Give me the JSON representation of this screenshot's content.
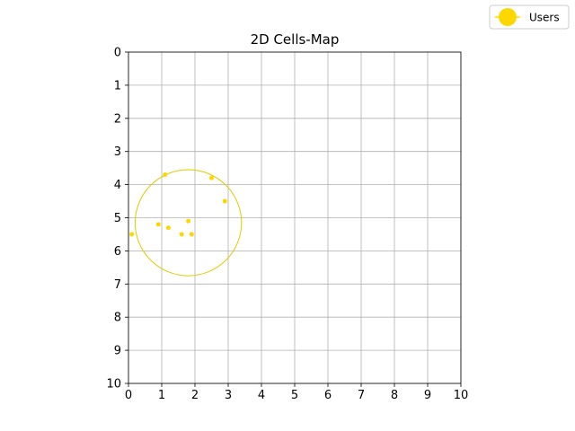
{
  "chart_data": {
    "type": "scatter",
    "title": "2D Cells-Map",
    "xlabel": "",
    "ylabel": "",
    "xlim": [
      0,
      10
    ],
    "ylim": [
      10,
      0
    ],
    "y_inverted": true,
    "grid": true,
    "xticks": [
      "0",
      "1",
      "2",
      "3",
      "4",
      "5",
      "6",
      "7",
      "8",
      "9",
      "10"
    ],
    "yticks": [
      "0",
      "1",
      "2",
      "3",
      "4",
      "5",
      "6",
      "7",
      "8",
      "9",
      "10"
    ],
    "legend": {
      "placement": "top-right",
      "entries": [
        "Users"
      ]
    },
    "series": [
      {
        "name": "Users",
        "color": "#FFD700",
        "points": [
          {
            "x": 0.1,
            "y": 5.5
          },
          {
            "x": 0.9,
            "y": 5.2
          },
          {
            "x": 1.1,
            "y": 3.7
          },
          {
            "x": 1.2,
            "y": 5.3
          },
          {
            "x": 1.6,
            "y": 5.5
          },
          {
            "x": 1.8,
            "y": 5.1
          },
          {
            "x": 1.9,
            "y": 5.5
          },
          {
            "x": 2.5,
            "y": 3.8
          },
          {
            "x": 2.9,
            "y": 4.5
          }
        ]
      }
    ],
    "circles": [
      {
        "cx": 1.8,
        "cy": 5.15,
        "r": 1.6,
        "color": "#DDCC00"
      }
    ]
  }
}
